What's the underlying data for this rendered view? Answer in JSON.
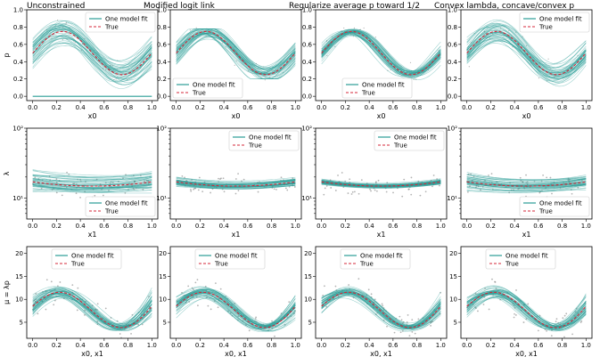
{
  "colors": {
    "fit": "#2a9d96",
    "true": "#d62739",
    "points": "#777777"
  },
  "legend": {
    "fit_label": "One model fit",
    "true_label": "True"
  },
  "columns": [
    {
      "title": "Unconstrained",
      "p_spread": 0.9,
      "lam_spread": 0.6,
      "mu_spread": 1.0,
      "flat_zero": true,
      "clamp": false
    },
    {
      "title": "Modified logit link",
      "p_spread": 0.55,
      "lam_spread": 0.25,
      "mu_spread": 0.9,
      "flat_zero": false,
      "clamp": true
    },
    {
      "title": "Regularize average p toward 1/2",
      "p_spread": 0.25,
      "lam_spread": 0.15,
      "mu_spread": 0.7,
      "flat_zero": false,
      "clamp": false
    },
    {
      "title": "Convex lambda, concave/convex p",
      "p_spread": 0.8,
      "lam_spread": 0.5,
      "mu_spread": 0.8,
      "flat_zero": false,
      "clamp": false
    }
  ],
  "chart_data": [
    {
      "type": "line",
      "row": "p",
      "ylabel": "p",
      "xlabel": "x0",
      "xlim": [
        -0.05,
        1.05
      ],
      "ylim": [
        -0.05,
        1.0
      ],
      "xticks": [
        0.0,
        0.2,
        0.4,
        0.6,
        0.8,
        1.0
      ],
      "xtick_labels": [
        "0.0",
        "0.2",
        "0.4",
        "0.6",
        "0.8",
        "1.0"
      ],
      "yticks": [
        0.0,
        0.2,
        0.4,
        0.6,
        0.8,
        1.0
      ],
      "ytick_labels": [
        "0.0",
        "0.2",
        "0.4",
        "0.6",
        "0.8",
        "1.0"
      ],
      "yscale": "linear",
      "true_curve": {
        "x": [
          0.0,
          0.1,
          0.2,
          0.25,
          0.3,
          0.4,
          0.5,
          0.6,
          0.7,
          0.75,
          0.8,
          0.9,
          1.0
        ],
        "y": [
          0.5,
          0.64,
          0.73,
          0.75,
          0.74,
          0.65,
          0.5,
          0.36,
          0.27,
          0.25,
          0.27,
          0.35,
          0.5
        ]
      },
      "legend_position": "upper right"
    },
    {
      "type": "line",
      "row": "lambda",
      "ylabel": "λ",
      "xlabel": "x1",
      "xlim": [
        -0.05,
        1.05
      ],
      "ylim": [
        5,
        100
      ],
      "xticks": [
        0.0,
        0.2,
        0.4,
        0.6,
        0.8,
        1.0
      ],
      "xtick_labels": [
        "0.0",
        "0.2",
        "0.4",
        "0.6",
        "0.8",
        "1.0"
      ],
      "yticks": [
        10,
        100
      ],
      "ytick_labels": [
        "10¹",
        "10²"
      ],
      "yscale": "log",
      "true_curve": {
        "x": [
          0.0,
          0.2,
          0.4,
          0.5,
          0.6,
          0.8,
          1.0
        ],
        "y": [
          17,
          15.6,
          14.9,
          14.8,
          14.9,
          15.6,
          17
        ]
      },
      "legend_positions": [
        "lower right",
        "upper right",
        "upper right",
        "lower right"
      ]
    },
    {
      "type": "line",
      "row": "mu",
      "ylabel": "μ = λp",
      "xlabel": "x0, x1",
      "xlim": [
        -0.05,
        1.05
      ],
      "ylim": [
        1.5,
        21.5
      ],
      "xticks": [
        0.0,
        0.2,
        0.4,
        0.6,
        0.8,
        1.0
      ],
      "xtick_labels": [
        "0.0",
        "0.2",
        "0.4",
        "0.6",
        "0.8",
        "1.0"
      ],
      "yticks": [
        5,
        10,
        15,
        20
      ],
      "ytick_labels": [
        "5",
        "10",
        "15",
        "20"
      ],
      "yscale": "linear",
      "true_curve": {
        "x": [
          0.0,
          0.1,
          0.2,
          0.25,
          0.3,
          0.4,
          0.5,
          0.6,
          0.7,
          0.75,
          0.8,
          0.9,
          1.0
        ],
        "y": [
          8.5,
          10.6,
          11.6,
          11.8,
          11.6,
          9.9,
          7.4,
          5.4,
          4.2,
          3.9,
          4.2,
          5.5,
          8.5
        ]
      },
      "legend_position": "upper center"
    }
  ]
}
